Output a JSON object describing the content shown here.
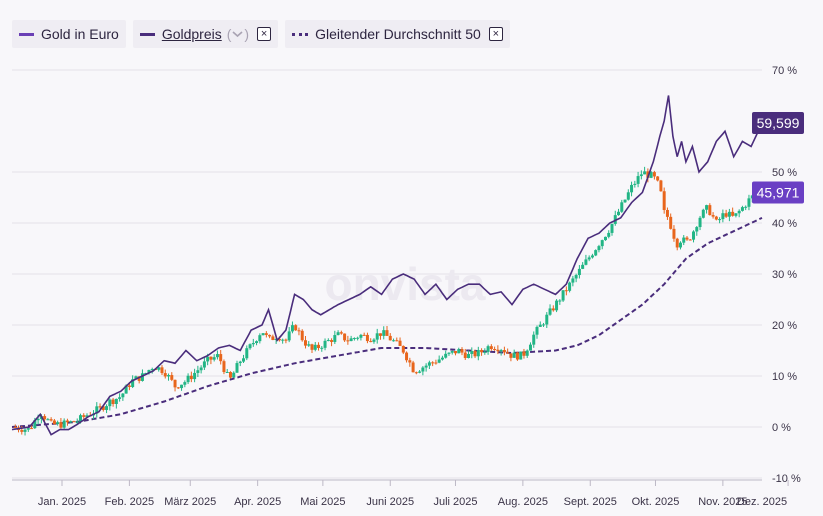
{
  "legend": {
    "series1_label": "Gold in Euro",
    "series2_label": "Goldpreis",
    "series3_label": "Gleitender Durchschnitt 50",
    "close_symbol": "×"
  },
  "watermark": "onvista",
  "chart_data": {
    "type": "line",
    "title": "",
    "xlabel": "",
    "ylabel": "",
    "ylim": [
      -10,
      70
    ],
    "y_ticks": [
      "70 %",
      "50 %",
      "40 %",
      "30 %",
      "20 %",
      "10 %",
      "0 %",
      "-10 %"
    ],
    "y_tick_values": [
      70,
      50,
      40,
      30,
      20,
      10,
      0,
      -10
    ],
    "x_ticks": [
      "Jan. 2025",
      "Feb. 2025",
      "März 2025",
      "Apr. 2025",
      "Mai 2025",
      "Juni 2025",
      "Juli 2025",
      "Aug. 2025",
      "Sept. 2025",
      "Okt. 2025",
      "Nov. 2025",
      "Dez. 2025"
    ],
    "x_range_days": [
      0,
      345
    ],
    "x_tick_days": [
      23,
      54,
      82,
      113,
      143,
      174,
      204,
      235,
      266,
      296,
      327,
      357
    ],
    "end_labels": {
      "goldpreis": "59,599",
      "gold_in_euro": "45,971"
    },
    "colors": {
      "up": "#22b585",
      "down": "#e8651c",
      "goldpreis": "#4a2d7c",
      "ma": "#4a2d7c",
      "badge_gold": "#4a2d7c",
      "badge_euro": "#6a3fc4"
    },
    "series": [
      {
        "name": "Goldpreis",
        "x": [
          0,
          8,
          13,
          18,
          22,
          26,
          30,
          35,
          40,
          45,
          50,
          55,
          60,
          65,
          70,
          75,
          80,
          85,
          90,
          95,
          100,
          105,
          110,
          115,
          118,
          122,
          126,
          130,
          134,
          138,
          142,
          146,
          150,
          155,
          160,
          165,
          170,
          175,
          180,
          185,
          190,
          195,
          200,
          205,
          210,
          215,
          220,
          225,
          230,
          235,
          240,
          245,
          250,
          255,
          260,
          265,
          270,
          275,
          280,
          285,
          290,
          295,
          298,
          300,
          302,
          304,
          306,
          308,
          310,
          313,
          316,
          320,
          324,
          328,
          332,
          336,
          340,
          345
        ],
        "values": [
          -0.5,
          0,
          2.5,
          -1.5,
          -0.5,
          -0.5,
          0.5,
          2,
          3,
          6,
          7,
          9,
          10,
          11,
          13,
          12.5,
          15,
          13,
          14,
          15.5,
          16,
          15,
          19,
          20,
          23,
          17,
          19,
          26,
          25,
          23,
          22,
          23,
          24,
          25,
          26,
          27.5,
          26,
          29,
          30,
          29,
          26,
          28,
          25,
          27,
          28,
          28,
          26,
          26.5,
          24,
          27,
          28,
          27,
          26,
          28,
          33,
          37,
          38,
          40,
          41,
          44,
          46,
          52,
          57,
          60,
          65,
          57,
          53,
          56,
          52,
          55,
          50,
          52,
          56,
          58,
          53,
          56,
          55,
          59.6
        ]
      },
      {
        "name": "Gold in Euro",
        "x": [
          0,
          8,
          13,
          18,
          22,
          26,
          30,
          35,
          40,
          45,
          50,
          55,
          60,
          65,
          70,
          75,
          80,
          85,
          90,
          95,
          100,
          105,
          110,
          115,
          118,
          122,
          126,
          130,
          134,
          138,
          142,
          146,
          150,
          155,
          160,
          165,
          170,
          175,
          180,
          185,
          190,
          195,
          200,
          205,
          210,
          215,
          220,
          225,
          230,
          235,
          240,
          245,
          250,
          255,
          260,
          265,
          270,
          275,
          280,
          285,
          290,
          295,
          298,
          300,
          302,
          304,
          306,
          308,
          310,
          313,
          316,
          320,
          324,
          328,
          332,
          336,
          340,
          345
        ],
        "values": [
          0,
          -0.5,
          3,
          0.5,
          0.5,
          0.8,
          1.2,
          2.5,
          3.5,
          5,
          6,
          9,
          10,
          12,
          11,
          8,
          9,
          11,
          13,
          14,
          9,
          13,
          16,
          19,
          17,
          18,
          17,
          20,
          17,
          15,
          16,
          17,
          18,
          17,
          18,
          17.5,
          18.5,
          17,
          15,
          11,
          12,
          13,
          14,
          15,
          14,
          14.5,
          16,
          15.5,
          14,
          14,
          18,
          21,
          24,
          27,
          30,
          33,
          36,
          39,
          43,
          47,
          50,
          49,
          47,
          42,
          41,
          38,
          36,
          37,
          36,
          38,
          41,
          43,
          40,
          42,
          41,
          43,
          45,
          45.97
        ]
      },
      {
        "name": "Gleitender Durchschnitt 50",
        "x": [
          0,
          30,
          50,
          70,
          90,
          110,
          130,
          150,
          170,
          190,
          210,
          230,
          250,
          260,
          270,
          280,
          290,
          300,
          310,
          320,
          330,
          340,
          345
        ],
        "values": [
          0,
          1,
          2.5,
          5,
          8,
          10.5,
          12.5,
          14,
          15.5,
          15.5,
          15,
          14.5,
          15,
          16,
          18,
          21,
          24,
          28,
          33,
          36,
          38,
          40,
          41
        ]
      }
    ]
  }
}
